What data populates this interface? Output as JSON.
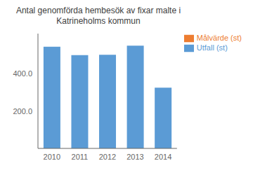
{
  "chart_data": {
    "type": "bar",
    "title": "Antal genomförda hembesök av fixar malte i\nKatrineholms kommun",
    "categories": [
      "2010",
      "2011",
      "2012",
      "2013",
      "2014"
    ],
    "series": [
      {
        "name": "Utfall (st)",
        "color": "#5B9BD5",
        "values": [
          545,
          500,
          502,
          550,
          325
        ]
      },
      {
        "name": "Målvärde (st)",
        "color": "#ED7D31",
        "values": [
          null,
          null,
          null,
          null,
          null
        ]
      }
    ],
    "ylim": [
      0,
      615
    ],
    "yticks": [
      {
        "value": 200,
        "label": "200.0"
      },
      {
        "value": 400,
        "label": "400.0"
      }
    ],
    "grid": false,
    "legend": "right"
  }
}
